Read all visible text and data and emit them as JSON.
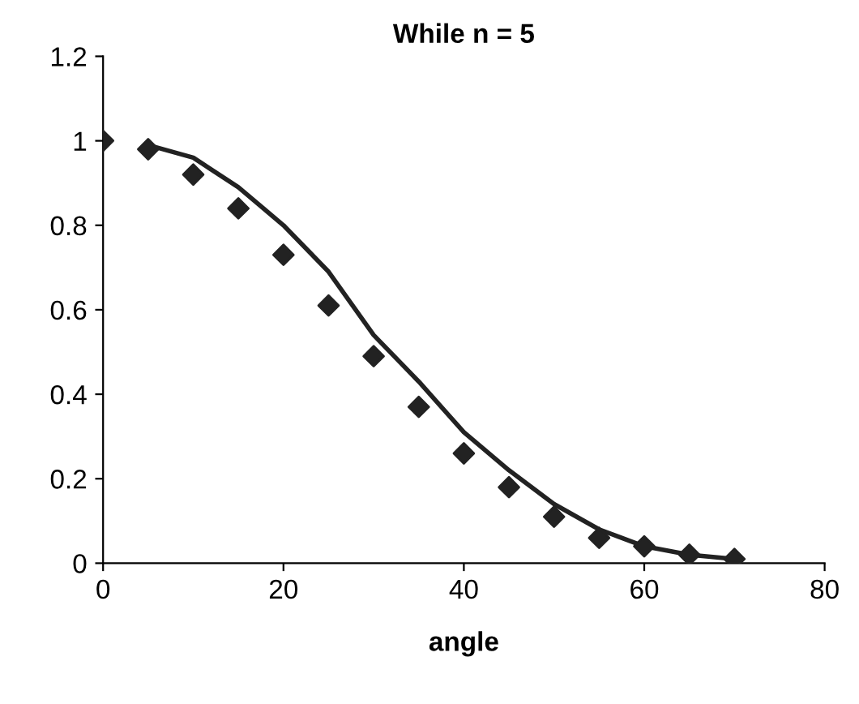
{
  "chart_data": {
    "type": "scatter",
    "title": "While n = 5",
    "xlabel": "angle",
    "xlim": [
      0,
      80
    ],
    "xticks": [
      0,
      20,
      40,
      60,
      80
    ],
    "ylim": [
      0,
      1.2
    ],
    "yticks": [
      0,
      0.2,
      0.4,
      0.6,
      0.8,
      1,
      1.2
    ],
    "grid": false,
    "legend": false,
    "series": [
      {
        "marker": "diamond",
        "color": "#222222",
        "x": [
          0,
          5,
          10,
          15,
          20,
          25,
          30,
          35,
          40,
          45,
          50,
          55,
          60,
          65,
          70
        ],
        "values": [
          1.0,
          0.98,
          0.92,
          0.84,
          0.73,
          0.61,
          0.49,
          0.37,
          0.26,
          0.18,
          0.11,
          0.06,
          0.04,
          0.02,
          0.01
        ]
      },
      {
        "type": "line",
        "line_style": "solid",
        "color": "#222222",
        "x": [
          5,
          10,
          15,
          20,
          25,
          30,
          35,
          40,
          45,
          50,
          55,
          60,
          65,
          70
        ],
        "values": [
          0.99,
          0.96,
          0.89,
          0.8,
          0.69,
          0.54,
          0.43,
          0.31,
          0.22,
          0.14,
          0.08,
          0.04,
          0.02,
          0.01
        ]
      }
    ]
  }
}
